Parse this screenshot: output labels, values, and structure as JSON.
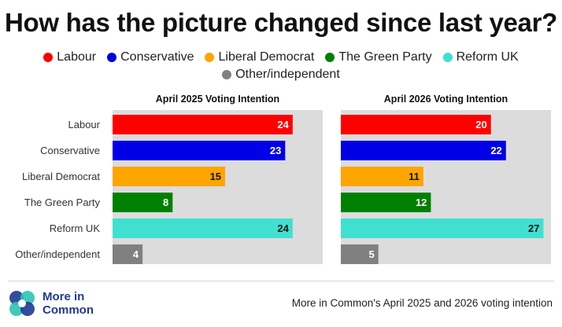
{
  "title": "How has the picture changed since last year?",
  "legend": [
    {
      "label": "Labour",
      "color": "#ff0000"
    },
    {
      "label": "Conservative",
      "color": "#0000e6"
    },
    {
      "label": "Liberal Democrat",
      "color": "#ffa500"
    },
    {
      "label": "The Green Party",
      "color": "#008000"
    },
    {
      "label": "Reform UK",
      "color": "#40e0d0"
    },
    {
      "label": "Other/independent",
      "color": "#808080"
    }
  ],
  "chart_data": {
    "type": "bar",
    "orientation": "horizontal",
    "categories": [
      "Labour",
      "Conservative",
      "Liberal Democrat",
      "The Green Party",
      "Reform UK",
      "Other/independent"
    ],
    "colors": [
      "#ff0000",
      "#0000e6",
      "#ffa500",
      "#008000",
      "#40e0d0",
      "#808080"
    ],
    "value_text_colors": [
      "#ffffff",
      "#ffffff",
      "#111111",
      "#ffffff",
      "#111111",
      "#ffffff"
    ],
    "xlim": [
      0,
      28
    ],
    "panels": [
      {
        "title": "April 2025 Voting Intention",
        "values": [
          24,
          23,
          15,
          8,
          24,
          4
        ]
      },
      {
        "title": "April 2026 Voting Intention",
        "values": [
          20,
          22,
          11,
          12,
          27,
          5
        ]
      }
    ]
  },
  "footer": {
    "logo_line1": "More in",
    "logo_line2": "Common",
    "note": "More in Common's April 2025 and 2026 voting intention"
  }
}
